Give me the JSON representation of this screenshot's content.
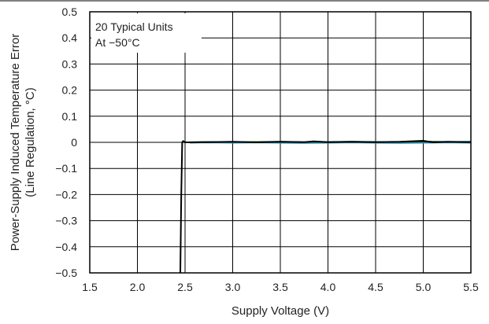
{
  "chart_data": {
    "type": "line",
    "title": "",
    "xlabel": "Supply Voltage (V)",
    "ylabel_line1": "Power-Supply Induced Temperature Error",
    "ylabel_line2": "(Line Regulation, °C)",
    "xlim": [
      1.5,
      5.5
    ],
    "ylim": [
      -0.5,
      0.5
    ],
    "xticks": [
      1.5,
      2.0,
      2.5,
      3.0,
      3.5,
      4.0,
      4.5,
      5.0,
      5.5
    ],
    "xtick_labels": [
      "1.5",
      "2.0",
      "2.5",
      "3.0",
      "3.5",
      "4.0",
      "4.5",
      "5.0",
      "5.5"
    ],
    "yticks": [
      0.5,
      0.4,
      0.3,
      0.2,
      0.1,
      0,
      -0.1,
      -0.2,
      -0.3,
      -0.4,
      -0.5
    ],
    "ytick_labels": [
      "0.5",
      "0.4",
      "0.3",
      "0.2",
      "0.1",
      "0",
      "−0.1",
      "−0.2",
      "−0.3",
      "−0.4",
      "−0.5"
    ],
    "grid": true,
    "annotations": [
      "20 Typical Units",
      "At −50°C"
    ],
    "series": [
      {
        "color": "#000000",
        "x": [
          2.45,
          2.46,
          2.47,
          2.48,
          2.5,
          2.75,
          3.0,
          3.25,
          3.5,
          3.75,
          3.85,
          4.0,
          4.25,
          4.5,
          4.75,
          5.0,
          5.1,
          5.25,
          5.5
        ],
        "y": [
          -0.5,
          -0.2,
          0.0,
          0.005,
          0.0,
          0.001,
          0.002,
          0.0,
          0.002,
          0.001,
          0.004,
          0.001,
          0.002,
          0.001,
          0.002,
          0.006,
          0.0,
          0.002,
          0.001
        ]
      },
      {
        "color": "#1a7a3a",
        "x": [
          2.48,
          2.75,
          3.0,
          3.25,
          3.5,
          3.75,
          4.0,
          4.25,
          4.5,
          4.75,
          5.0,
          5.25,
          5.5
        ],
        "y": [
          0.0,
          0.002,
          0.001,
          0.002,
          0.003,
          0.001,
          0.002,
          0.003,
          0.002,
          0.001,
          0.004,
          0.002,
          0.003
        ]
      },
      {
        "color": "#2b8ab0",
        "x": [
          2.55,
          2.75,
          3.0,
          3.25,
          3.5,
          3.75,
          4.0,
          4.25,
          4.5,
          4.75,
          5.0,
          5.25,
          5.5
        ],
        "y": [
          -0.002,
          -0.001,
          -0.002,
          -0.001,
          -0.002,
          -0.003,
          -0.002,
          -0.001,
          -0.002,
          -0.003,
          -0.002,
          -0.001,
          -0.002
        ]
      }
    ]
  }
}
